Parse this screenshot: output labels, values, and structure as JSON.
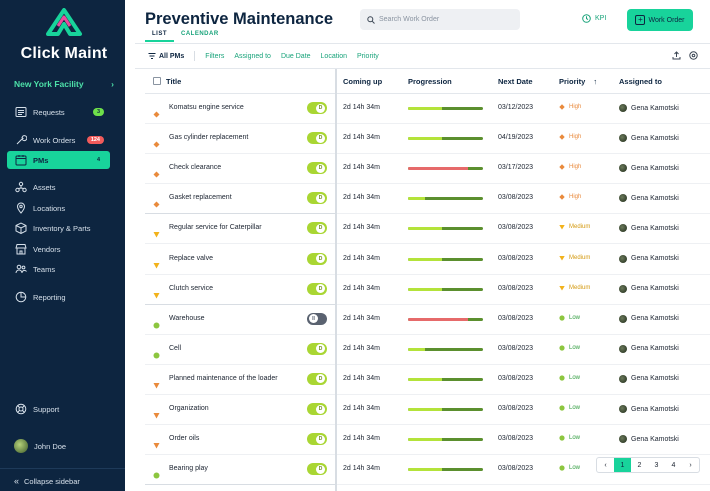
{
  "sidebar": {
    "brand": "Click Maint",
    "facility": "New York Facility",
    "items": [
      {
        "label": "Requests",
        "badge": "3",
        "badge_color": "#6ee04a"
      },
      {
        "label": "Work Orders",
        "badge": "124",
        "badge_color": "#f15b5b"
      },
      {
        "label": "PMs",
        "badge": "4",
        "active": true
      },
      {
        "label": "Assets"
      },
      {
        "label": "Locations"
      },
      {
        "label": "Inventory & Parts"
      },
      {
        "label": "Vendors"
      },
      {
        "label": "Teams"
      },
      {
        "label": "Reporting"
      },
      {
        "label": "Support"
      }
    ],
    "user_name": "John Doe",
    "collapse_label": "Collapse sidebar"
  },
  "header": {
    "title": "Preventive Maintenance",
    "tabs": [
      "LIST",
      "CALENDAR"
    ],
    "search_placeholder": "Search Work Order",
    "kpi_label": "KPI",
    "work_order_button": "Work Order"
  },
  "filters": {
    "all_pms": "All PMs",
    "items": [
      "Filters",
      "Assigned to",
      "Due Date",
      "Location",
      "Priority"
    ]
  },
  "table": {
    "columns": [
      "Title",
      "Coming up",
      "Progression",
      "Next Date",
      "Priority",
      "Assigned to"
    ],
    "rows": [
      {
        "title": "Komatsu engine service",
        "enabled": true,
        "coming_up": "2d 14h 34m",
        "progress": 0.45,
        "progress_color": "#b4e33a",
        "next_date": "03/12/2023",
        "priority": "High",
        "assigned": "Gena Kamotski"
      },
      {
        "title": "Gas cylinder replacement",
        "enabled": true,
        "coming_up": "2d 14h 34m",
        "progress": 0.45,
        "progress_color": "#b4e33a",
        "next_date": "04/19/2023",
        "priority": "High",
        "assigned": "Gena Kamotski"
      },
      {
        "title": "Check clearance",
        "enabled": true,
        "coming_up": "2d 14h 34m",
        "progress": 0.8,
        "progress_color": "#e66a6a",
        "next_date": "03/17/2023",
        "priority": "High",
        "assigned": "Gena Kamotski"
      },
      {
        "title": "Gasket replacement",
        "enabled": true,
        "coming_up": "2d 14h 34m",
        "progress": 0.22,
        "progress_color": "#b4e33a",
        "next_date": "03/08/2023",
        "priority": "High",
        "assigned": "Gena Kamotski"
      },
      {
        "title": "Regular service for Caterpillar",
        "enabled": true,
        "coming_up": "2d 14h 34m",
        "progress": 0.45,
        "progress_color": "#b4e33a",
        "next_date": "03/08/2023",
        "priority": "Medium",
        "assigned": "Gena Kamotski"
      },
      {
        "title": "Replace valve",
        "enabled": true,
        "coming_up": "2d 14h 34m",
        "progress": 0.45,
        "progress_color": "#b4e33a",
        "next_date": "03/08/2023",
        "priority": "Medium",
        "assigned": "Gena Kamotski"
      },
      {
        "title": "Clutch service",
        "enabled": true,
        "coming_up": "2d 14h 34m",
        "progress": 0.45,
        "progress_color": "#b4e33a",
        "next_date": "03/08/2023",
        "priority": "Medium",
        "assigned": "Gena Kamotski"
      },
      {
        "title": "Warehouse",
        "enabled": false,
        "coming_up": "2d 14h 34m",
        "progress": 0.8,
        "progress_color": "#e66a6a",
        "next_date": "03/08/2023",
        "priority": "Low",
        "assigned": "Gena Kamotski"
      },
      {
        "title": "Cell",
        "enabled": true,
        "coming_up": "2d 14h 34m",
        "progress": 0.22,
        "progress_color": "#b4e33a",
        "next_date": "03/08/2023",
        "priority": "Low",
        "assigned": "Gena Kamotski"
      },
      {
        "title": "Planned maintenance of the loader",
        "enabled": true,
        "coming_up": "2d 14h 34m",
        "progress": 0.45,
        "progress_color": "#b4e33a",
        "next_date": "03/08/2023",
        "priority": "Low",
        "assigned": "Gena Kamotski"
      },
      {
        "title": "Organization",
        "enabled": true,
        "coming_up": "2d 14h 34m",
        "progress": 0.45,
        "progress_color": "#b4e33a",
        "next_date": "03/08/2023",
        "priority": "Low",
        "assigned": "Gena Kamotski"
      },
      {
        "title": "Order oils",
        "enabled": true,
        "coming_up": "2d 14h 34m",
        "progress": 0.45,
        "progress_color": "#b4e33a",
        "next_date": "03/08/2023",
        "priority": "Low",
        "assigned": "Gena Kamotski"
      },
      {
        "title": "Bearing play",
        "enabled": true,
        "coming_up": "2d 14h 34m",
        "progress": 0.45,
        "progress_color": "#b4e33a",
        "next_date": "03/08/2023",
        "priority": "Low",
        "assigned": "Gena Kamotski"
      }
    ],
    "row_icon_colors": [
      "#e98a3c",
      "#e98a3c",
      "#e98a3c",
      "#e98a3c",
      "#f2b21b",
      "#f2b21b",
      "#f2b21b",
      "#8cc63f",
      "#8cc63f",
      "#e98a3c",
      "#e98a3c",
      "#e98a3c",
      "#8cc63f"
    ],
    "row_icon_shapes": [
      "diamond",
      "diamond",
      "diamond",
      "diamond",
      "tri",
      "tri",
      "tri",
      "dot",
      "dot",
      "tri",
      "tri",
      "tri",
      "dot"
    ]
  },
  "priority_styles": {
    "High": {
      "color": "#e98a3c",
      "icon": "diamond"
    },
    "Medium": {
      "color": "#d49a10",
      "icon": "triangle-down"
    },
    "Low": {
      "color": "#2f9c3e",
      "icon": "dot"
    }
  },
  "pagination": {
    "prev": "‹",
    "pages": [
      "1",
      "2",
      "3",
      "4"
    ],
    "current": "1",
    "next": "›"
  }
}
